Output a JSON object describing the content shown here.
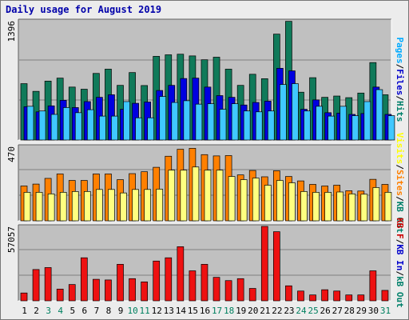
{
  "title": "Daily usage for August 2019",
  "chart_data": [
    {
      "type": "bar",
      "panel": "top",
      "ymax_label": "1396",
      "ylim": [
        0,
        1396
      ],
      "grid": true,
      "legend_labels": [
        {
          "text": "Pages",
          "color": "#00aaff"
        },
        {
          "text": "/",
          "color": "#000000"
        },
        {
          "text": "Files",
          "color": "#0000cc"
        },
        {
          "text": "/",
          "color": "#000000"
        },
        {
          "text": "Hits",
          "color": "#00806a"
        }
      ],
      "categories": [
        "1",
        "2",
        "3",
        "4",
        "5",
        "6",
        "7",
        "8",
        "9",
        "10",
        "11",
        "12",
        "13",
        "14",
        "15",
        "16",
        "17",
        "18",
        "19",
        "20",
        "21",
        "22",
        "23",
        "24",
        "25",
        "26",
        "27",
        "28",
        "29",
        "30",
        "31"
      ],
      "series": [
        {
          "name": "Hits",
          "color": "#107a5a",
          "values": [
            660,
            570,
            690,
            725,
            620,
            595,
            780,
            830,
            640,
            790,
            638,
            980,
            998,
            1005,
            985,
            940,
            970,
            830,
            640,
            770,
            718,
            1240,
            1390,
            560,
            730,
            500,
            515,
            496,
            550,
            907,
            530
          ]
        },
        {
          "name": "Files",
          "color": "#0000e0",
          "values": [
            390,
            330,
            400,
            465,
            380,
            450,
            500,
            530,
            360,
            430,
            445,
            580,
            640,
            720,
            725,
            620,
            520,
            500,
            410,
            440,
            455,
            840,
            810,
            360,
            470,
            320,
            315,
            300,
            310,
            620,
            300
          ]
        },
        {
          "name": "Pages",
          "color": "#40c8ff",
          "values": [
            395,
            340,
            300,
            380,
            320,
            355,
            280,
            280,
            450,
            260,
            260,
            510,
            440,
            460,
            420,
            425,
            360,
            425,
            340,
            330,
            340,
            650,
            660,
            340,
            395,
            280,
            395,
            285,
            450,
            590,
            285
          ]
        }
      ]
    },
    {
      "type": "bar",
      "panel": "middle",
      "ymax_label": "470",
      "ylim": [
        0,
        470
      ],
      "grid": true,
      "legend_labels": [
        {
          "text": "Visits",
          "color": "#ffff00"
        },
        {
          "text": "/",
          "color": "#000000"
        },
        {
          "text": "Sites",
          "color": "#ff8000"
        },
        {
          "text": "/",
          "color": "#000000"
        },
        {
          "text": "KB Out",
          "color": "#00806a"
        }
      ],
      "categories": [
        "1",
        "2",
        "3",
        "4",
        "5",
        "6",
        "7",
        "8",
        "9",
        "10",
        "11",
        "12",
        "13",
        "14",
        "15",
        "16",
        "17",
        "18",
        "19",
        "20",
        "21",
        "22",
        "23",
        "24",
        "25",
        "26",
        "27",
        "28",
        "29",
        "30",
        "31"
      ],
      "series": [
        {
          "name": "Sites",
          "color": "#ff8000",
          "values": [
            220,
            232,
            268,
            296,
            255,
            255,
            296,
            296,
            260,
            298,
            310,
            338,
            408,
            452,
            458,
            418,
            410,
            412,
            290,
            318,
            278,
            316,
            280,
            252,
            230,
            220,
            225,
            190,
            188,
            262,
            230
          ]
        },
        {
          "name": "Visits",
          "color": "#ffff80",
          "values": [
            180,
            180,
            170,
            180,
            185,
            185,
            198,
            198,
            176,
            198,
            198,
            200,
            320,
            320,
            340,
            320,
            320,
            280,
            260,
            270,
            225,
            255,
            240,
            185,
            180,
            180,
            182,
            170,
            168,
            210,
            180
          ]
        }
      ]
    },
    {
      "type": "bar",
      "panel": "bottom",
      "ymax_label": "57057",
      "ylim": [
        0,
        57057
      ],
      "grid": true,
      "legend_labels": [
        {
          "text": "KB F",
          "color": "#cc0000"
        },
        {
          "text": "/",
          "color": "#000000"
        },
        {
          "text": "KB In",
          "color": "#0000cc"
        },
        {
          "text": "/",
          "color": "#000000"
        },
        {
          "text": "kB Out",
          "color": "#00806a"
        }
      ],
      "categories": [
        "1",
        "2",
        "3",
        "4",
        "5",
        "6",
        "7",
        "8",
        "9",
        "10",
        "11",
        "12",
        "13",
        "14",
        "15",
        "16",
        "17",
        "18",
        "19",
        "20",
        "21",
        "22",
        "23",
        "24",
        "25",
        "26",
        "27",
        "28",
        "29",
        "30",
        "31"
      ],
      "series": [
        {
          "name": "KB F",
          "color": "#ee1111",
          "values": [
            6000,
            24000,
            25500,
            9000,
            12500,
            33000,
            16500,
            16000,
            28000,
            17000,
            14500,
            30500,
            33000,
            41500,
            23000,
            28000,
            18000,
            15500,
            17000,
            9500,
            57057,
            53000,
            11500,
            7500,
            4500,
            8500,
            7500,
            4500,
            4500,
            23000,
            8000
          ]
        }
      ]
    }
  ],
  "x_tick_colors": [
    "#000000",
    "#000000",
    "#008060",
    "#008060",
    "#000000",
    "#000000",
    "#000000",
    "#000000",
    "#000000",
    "#008060",
    "#008060",
    "#000000",
    "#000000",
    "#000000",
    "#000000",
    "#000000",
    "#008060",
    "#008060",
    "#000000",
    "#000000",
    "#000000",
    "#000000",
    "#000000",
    "#008060",
    "#008060",
    "#000000",
    "#000000",
    "#000000",
    "#000000",
    "#000000",
    "#008060"
  ]
}
